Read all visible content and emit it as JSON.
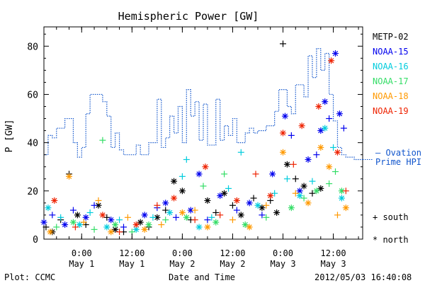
{
  "chart_data": {
    "type": "scatter",
    "title": "Hemispheric Power [GW]",
    "ylabel": "P [GW]",
    "xlabel": "Date and Time",
    "ylim": [
      0,
      88
    ],
    "xlim": [
      "2012-04-30 15:00",
      "2012-05-03 19:00"
    ],
    "yticks": [
      0,
      20,
      40,
      60,
      80
    ],
    "xticks": [
      {
        "t": "2012-05-01 00:00",
        "line1": "0:00",
        "line2": "May 1"
      },
      {
        "t": "2012-05-01 12:00",
        "line1": "12:00",
        "line2": "May 1"
      },
      {
        "t": "2012-05-02 00:00",
        "line1": "0:00",
        "line2": "May 2"
      },
      {
        "t": "2012-05-02 12:00",
        "line1": "12:00",
        "line2": "May 2"
      },
      {
        "t": "2012-05-03 00:00",
        "line1": "0:00",
        "line2": "May 3"
      },
      {
        "t": "2012-05-03 12:00",
        "line1": "12:00",
        "line2": "May 3"
      }
    ],
    "grid": false,
    "legend_position": "right",
    "series": [
      {
        "name": "METP-02",
        "color": "#000000",
        "points": [
          [
            "2012-04-30 15:30",
            5,
            "s"
          ],
          [
            "2012-04-30 17:00",
            3,
            "n"
          ],
          [
            "2012-04-30 19:00",
            8,
            "s"
          ],
          [
            "2012-04-30 21:00",
            27,
            "s"
          ],
          [
            "2012-04-30 23:00",
            10,
            "n"
          ],
          [
            "2012-05-01 01:00",
            6,
            "s"
          ],
          [
            "2012-05-01 04:00",
            14,
            "n"
          ],
          [
            "2012-05-01 06:00",
            9,
            "s"
          ],
          [
            "2012-05-01 08:00",
            4,
            "n"
          ],
          [
            "2012-05-01 10:00",
            3,
            "s"
          ],
          [
            "2012-05-01 14:00",
            7,
            "n"
          ],
          [
            "2012-05-01 16:00",
            5,
            "s"
          ],
          [
            "2012-05-01 18:00",
            9,
            "n"
          ],
          [
            "2012-05-01 20:00",
            12,
            "s"
          ],
          [
            "2012-05-01 22:00",
            24,
            "n"
          ],
          [
            "2012-05-02 00:00",
            20,
            "n"
          ],
          [
            "2012-05-02 02:00",
            8,
            "s"
          ],
          [
            "2012-05-02 06:00",
            16,
            "n"
          ],
          [
            "2012-05-02 08:00",
            11,
            "s"
          ],
          [
            "2012-05-02 10:00",
            19,
            "n"
          ],
          [
            "2012-05-02 12:00",
            14,
            "s"
          ],
          [
            "2012-05-02 14:00",
            10,
            "n"
          ],
          [
            "2012-05-02 17:00",
            17,
            "s"
          ],
          [
            "2012-05-02 19:00",
            13,
            "n"
          ],
          [
            "2012-05-02 21:00",
            16,
            "s"
          ],
          [
            "2012-05-02 22:30",
            11,
            "n"
          ],
          [
            "2012-05-03 00:00",
            81,
            "s"
          ],
          [
            "2012-05-03 01:00",
            31,
            "n"
          ],
          [
            "2012-05-03 03:00",
            25,
            "s"
          ],
          [
            "2012-05-03 05:00",
            22,
            "n"
          ],
          [
            "2012-05-03 07:00",
            19,
            "s"
          ],
          [
            "2012-05-03 09:00",
            21,
            "n"
          ]
        ]
      },
      {
        "name": "NOAA-15",
        "color": "#0000ee",
        "points": [
          [
            "2012-04-30 15:00",
            7,
            "n"
          ],
          [
            "2012-04-30 17:00",
            10,
            "s"
          ],
          [
            "2012-04-30 20:00",
            6,
            "n"
          ],
          [
            "2012-04-30 22:00",
            12,
            "s"
          ],
          [
            "2012-05-01 01:00",
            9,
            "n"
          ],
          [
            "2012-05-01 03:00",
            14,
            "s"
          ],
          [
            "2012-05-01 07:00",
            8,
            "n"
          ],
          [
            "2012-05-01 10:00",
            5,
            "s"
          ],
          [
            "2012-05-01 15:00",
            10,
            "n"
          ],
          [
            "2012-05-01 18:00",
            13,
            "s"
          ],
          [
            "2012-05-01 20:00",
            15,
            "n"
          ],
          [
            "2012-05-01 22:30",
            9,
            "s"
          ],
          [
            "2012-05-02 02:00",
            12,
            "n"
          ],
          [
            "2012-05-02 04:00",
            27,
            "n"
          ],
          [
            "2012-05-02 06:00",
            8,
            "s"
          ],
          [
            "2012-05-02 09:00",
            18,
            "n"
          ],
          [
            "2012-05-02 13:00",
            12,
            "s"
          ],
          [
            "2012-05-02 16:00",
            15,
            "n"
          ],
          [
            "2012-05-02 19:00",
            10,
            "s"
          ],
          [
            "2012-05-02 21:30",
            27,
            "n"
          ],
          [
            "2012-05-03 00:30",
            51,
            "n"
          ],
          [
            "2012-05-03 02:00",
            43,
            "s"
          ],
          [
            "2012-05-03 04:00",
            20,
            "n"
          ],
          [
            "2012-05-03 06:00",
            33,
            "n"
          ],
          [
            "2012-05-03 08:00",
            35,
            "s"
          ],
          [
            "2012-05-03 09:00",
            45,
            "n"
          ],
          [
            "2012-05-03 10:00",
            57,
            "n"
          ],
          [
            "2012-05-03 11:00",
            50,
            "s"
          ],
          [
            "2012-05-03 12:30",
            77,
            "n"
          ],
          [
            "2012-05-03 13:30",
            52,
            "n"
          ],
          [
            "2012-05-03 14:30",
            46,
            "s"
          ]
        ]
      },
      {
        "name": "NOAA-16",
        "color": "#00ccdd",
        "points": [
          [
            "2012-04-30 16:00",
            13,
            "n"
          ],
          [
            "2012-04-30 19:00",
            9,
            "s"
          ],
          [
            "2012-04-30 23:30",
            6,
            "n"
          ],
          [
            "2012-05-01 02:00",
            11,
            "s"
          ],
          [
            "2012-05-01 06:00",
            5,
            "n"
          ],
          [
            "2012-05-01 09:00",
            8,
            "s"
          ],
          [
            "2012-05-01 13:00",
            4,
            "n"
          ],
          [
            "2012-05-01 17:00",
            9,
            "s"
          ],
          [
            "2012-05-01 21:00",
            11,
            "n"
          ],
          [
            "2012-05-02 00:00",
            26,
            "s"
          ],
          [
            "2012-05-02 01:00",
            33,
            "s"
          ],
          [
            "2012-05-02 04:00",
            5,
            "n"
          ],
          [
            "2012-05-02 07:00",
            9,
            "s"
          ],
          [
            "2012-05-02 11:00",
            21,
            "s"
          ],
          [
            "2012-05-02 14:00",
            36,
            "s"
          ],
          [
            "2012-05-02 18:00",
            14,
            "n"
          ],
          [
            "2012-05-02 22:00",
            19,
            "s"
          ],
          [
            "2012-05-03 01:00",
            25,
            "s"
          ],
          [
            "2012-05-03 04:00",
            18,
            "n"
          ],
          [
            "2012-05-03 07:00",
            24,
            "s"
          ],
          [
            "2012-05-03 10:00",
            46,
            "n"
          ],
          [
            "2012-05-03 12:00",
            38,
            "s"
          ],
          [
            "2012-05-03 14:00",
            17,
            "n"
          ]
        ]
      },
      {
        "name": "NOAA-17",
        "color": "#33dd66",
        "points": [
          [
            "2012-04-30 18:00",
            5,
            "s"
          ],
          [
            "2012-04-30 22:00",
            7,
            "n"
          ],
          [
            "2012-05-01 03:00",
            4,
            "s"
          ],
          [
            "2012-05-01 05:00",
            41,
            "s"
          ],
          [
            "2012-05-01 08:00",
            6,
            "n"
          ],
          [
            "2012-05-01 12:00",
            3,
            "s"
          ],
          [
            "2012-05-01 16:00",
            6,
            "n"
          ],
          [
            "2012-05-01 20:00",
            8,
            "s"
          ],
          [
            "2012-05-02 01:00",
            9,
            "n"
          ],
          [
            "2012-05-02 05:00",
            22,
            "s"
          ],
          [
            "2012-05-02 08:00",
            7,
            "n"
          ],
          [
            "2012-05-02 10:00",
            27,
            "s"
          ],
          [
            "2012-05-02 15:00",
            6,
            "n"
          ],
          [
            "2012-05-02 20:00",
            9,
            "s"
          ],
          [
            "2012-05-03 02:00",
            13,
            "n"
          ],
          [
            "2012-05-03 05:00",
            17,
            "s"
          ],
          [
            "2012-05-03 08:00",
            20,
            "n"
          ],
          [
            "2012-05-03 11:00",
            23,
            "s"
          ],
          [
            "2012-05-03 12:30",
            28,
            "s"
          ],
          [
            "2012-05-03 14:00",
            20,
            "n"
          ]
        ]
      },
      {
        "name": "NOAA-18",
        "color": "#ff9900",
        "points": [
          [
            "2012-04-30 16:30",
            3,
            "n"
          ],
          [
            "2012-04-30 21:00",
            26,
            "n"
          ],
          [
            "2012-05-01 00:30",
            7,
            "s"
          ],
          [
            "2012-05-01 04:00",
            16,
            "s"
          ],
          [
            "2012-05-01 07:00",
            3,
            "n"
          ],
          [
            "2012-05-01 11:00",
            9,
            "s"
          ],
          [
            "2012-05-01 15:00",
            4,
            "n"
          ],
          [
            "2012-05-01 19:00",
            6,
            "s"
          ],
          [
            "2012-05-02 00:00",
            11,
            "n"
          ],
          [
            "2012-05-02 03:00",
            12,
            "s"
          ],
          [
            "2012-05-02 06:00",
            5,
            "n"
          ],
          [
            "2012-05-02 12:00",
            8,
            "s"
          ],
          [
            "2012-05-02 16:00",
            5,
            "n"
          ],
          [
            "2012-05-02 20:00",
            14,
            "s"
          ],
          [
            "2012-05-03 00:00",
            36,
            "n"
          ],
          [
            "2012-05-03 03:00",
            19,
            "s"
          ],
          [
            "2012-05-03 06:00",
            15,
            "n"
          ],
          [
            "2012-05-03 09:00",
            38,
            "n"
          ],
          [
            "2012-05-03 11:00",
            30,
            "n"
          ],
          [
            "2012-05-03 13:00",
            10,
            "s"
          ],
          [
            "2012-05-03 15:00",
            13,
            "n"
          ]
        ]
      },
      {
        "name": "NOAA-19",
        "color": "#ee2200",
        "points": [
          [
            "2012-04-30 17:30",
            16,
            "n"
          ],
          [
            "2012-04-30 22:30",
            5,
            "s"
          ],
          [
            "2012-05-01 05:00",
            10,
            "n"
          ],
          [
            "2012-05-01 09:00",
            3,
            "s"
          ],
          [
            "2012-05-01 13:00",
            6,
            "n"
          ],
          [
            "2012-05-01 18:00",
            14,
            "s"
          ],
          [
            "2012-05-01 22:00",
            17,
            "n"
          ],
          [
            "2012-05-02 03:00",
            8,
            "s"
          ],
          [
            "2012-05-02 05:30",
            30,
            "n"
          ],
          [
            "2012-05-02 09:00",
            10,
            "s"
          ],
          [
            "2012-05-02 13:00",
            16,
            "n"
          ],
          [
            "2012-05-02 17:30",
            27,
            "s"
          ],
          [
            "2012-05-02 21:00",
            18,
            "n"
          ],
          [
            "2012-05-03 00:00",
            44,
            "n"
          ],
          [
            "2012-05-03 02:30",
            31,
            "s"
          ],
          [
            "2012-05-03 04:30",
            47,
            "n"
          ],
          [
            "2012-05-03 08:30",
            55,
            "n"
          ],
          [
            "2012-05-03 11:30",
            74,
            "n"
          ],
          [
            "2012-05-03 13:00",
            36,
            "n"
          ],
          [
            "2012-05-03 15:00",
            20,
            "s"
          ]
        ]
      }
    ],
    "ovation": {
      "name": "Ovation Prime HPI",
      "label": "— Ovation",
      "label2": "Prime HPI",
      "color": "#1155cc",
      "steps": [
        [
          "2012-04-30 15:00",
          35
        ],
        [
          "2012-04-30 16:00",
          43
        ],
        [
          "2012-04-30 17:00",
          42
        ],
        [
          "2012-04-30 18:00",
          46
        ],
        [
          "2012-04-30 20:00",
          50
        ],
        [
          "2012-04-30 22:00",
          40
        ],
        [
          "2012-04-30 23:00",
          34
        ],
        [
          "2012-05-01 00:00",
          38
        ],
        [
          "2012-05-01 01:00",
          52
        ],
        [
          "2012-05-01 02:00",
          60
        ],
        [
          "2012-05-01 05:00",
          57
        ],
        [
          "2012-05-01 06:00",
          51
        ],
        [
          "2012-05-01 07:00",
          38
        ],
        [
          "2012-05-01 08:00",
          44
        ],
        [
          "2012-05-01 09:00",
          37
        ],
        [
          "2012-05-01 10:00",
          35
        ],
        [
          "2012-05-01 13:00",
          39
        ],
        [
          "2012-05-01 14:00",
          35
        ],
        [
          "2012-05-01 16:00",
          40
        ],
        [
          "2012-05-01 18:00",
          58
        ],
        [
          "2012-05-01 19:00",
          38
        ],
        [
          "2012-05-01 20:00",
          42
        ],
        [
          "2012-05-01 21:00",
          51
        ],
        [
          "2012-05-01 22:00",
          44
        ],
        [
          "2012-05-01 23:00",
          55
        ],
        [
          "2012-05-02 00:00",
          40
        ],
        [
          "2012-05-02 01:00",
          62
        ],
        [
          "2012-05-02 02:00",
          51
        ],
        [
          "2012-05-02 03:00",
          57
        ],
        [
          "2012-05-02 04:00",
          41
        ],
        [
          "2012-05-02 05:00",
          56
        ],
        [
          "2012-05-02 06:00",
          39
        ],
        [
          "2012-05-02 08:00",
          58
        ],
        [
          "2012-05-02 09:00",
          41
        ],
        [
          "2012-05-02 10:00",
          47
        ],
        [
          "2012-05-02 11:00",
          43
        ],
        [
          "2012-05-02 12:00",
          50
        ],
        [
          "2012-05-02 13:00",
          40
        ],
        [
          "2012-05-02 15:00",
          44
        ],
        [
          "2012-05-02 16:00",
          46
        ],
        [
          "2012-05-02 17:00",
          44
        ],
        [
          "2012-05-02 18:00",
          45
        ],
        [
          "2012-05-02 20:00",
          47
        ],
        [
          "2012-05-02 22:00",
          53
        ],
        [
          "2012-05-02 23:00",
          62
        ],
        [
          "2012-05-03 01:00",
          55
        ],
        [
          "2012-05-03 02:00",
          52
        ],
        [
          "2012-05-03 03:00",
          64
        ],
        [
          "2012-05-03 05:00",
          59
        ],
        [
          "2012-05-03 06:00",
          76
        ],
        [
          "2012-05-03 07:00",
          67
        ],
        [
          "2012-05-03 08:00",
          79
        ],
        [
          "2012-05-03 09:00",
          70
        ],
        [
          "2012-05-03 10:00",
          77
        ],
        [
          "2012-05-03 11:00",
          60
        ],
        [
          "2012-05-03 12:00",
          49
        ],
        [
          "2012-05-03 13:00",
          38
        ],
        [
          "2012-05-03 14:00",
          35
        ],
        [
          "2012-05-03 15:00",
          34
        ],
        [
          "2012-05-03 17:00",
          33
        ],
        [
          "2012-05-03 19:00",
          33
        ]
      ]
    },
    "symbol_legend": {
      "south": "+ south",
      "north": "* north"
    }
  },
  "footer": {
    "plot_credit": "Plot: CCMC",
    "xlabel": "Date and Time",
    "timestamp": "2012/05/03 16:40:08"
  }
}
